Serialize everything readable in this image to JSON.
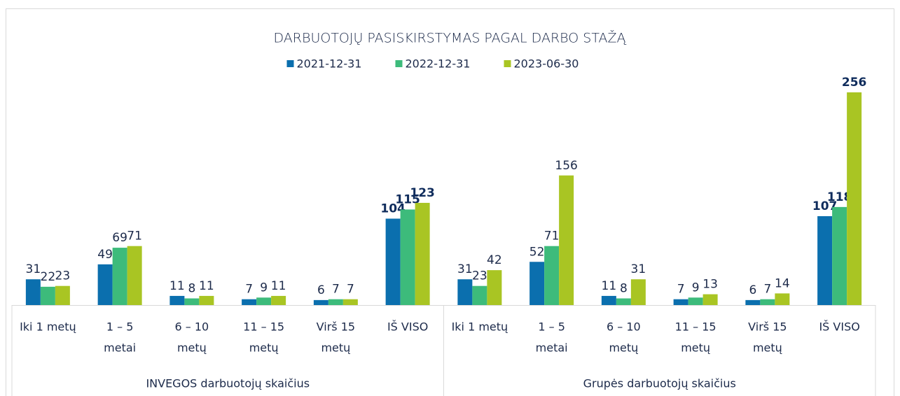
{
  "chart_data": {
    "type": "bar",
    "title": "DARBUOTOJŲ PASISKIRSTYMAS PAGAL DARBO STAŽĄ",
    "groups": [
      "INVEGOS darbuotojų skaičius",
      "Grupės darbuotojų skaičius"
    ],
    "categories": [
      [
        "Iki 1 metų"
      ],
      [
        "1 – 5",
        "metai"
      ],
      [
        "6 – 10",
        "metų"
      ],
      [
        "11 – 15",
        "metų"
      ],
      [
        "Virš 15",
        "metų"
      ],
      [
        "IŠ VISO"
      ],
      [
        "Iki 1 metų"
      ],
      [
        "1 – 5",
        "metai"
      ],
      [
        "6 – 10",
        "metų"
      ],
      [
        "11 – 15",
        "metų"
      ],
      [
        "Virš 15",
        "metų"
      ],
      [
        "IŠ VISO"
      ]
    ],
    "series": [
      {
        "name": "2021-12-31",
        "color": "#0b6fae",
        "values": [
          31,
          49,
          11,
          7,
          6,
          104,
          31,
          52,
          11,
          7,
          6,
          107
        ]
      },
      {
        "name": "2022-12-31",
        "color": "#3dbb7b",
        "values": [
          22,
          69,
          8,
          9,
          7,
          115,
          23,
          71,
          8,
          9,
          7,
          118
        ]
      },
      {
        "name": "2023-06-30",
        "color": "#a9c523",
        "values": [
          23,
          71,
          11,
          11,
          7,
          123,
          42,
          156,
          31,
          13,
          14,
          256
        ]
      }
    ]
  }
}
